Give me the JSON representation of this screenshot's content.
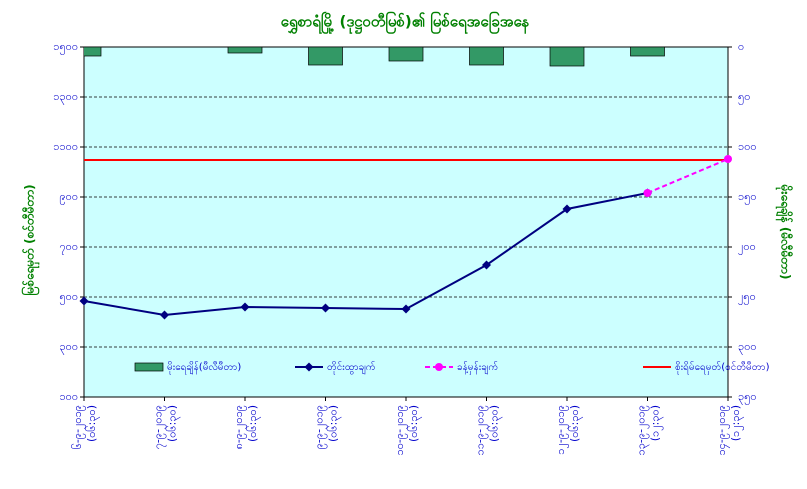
{
  "chart_data": {
    "type": "combo",
    "title": "ရွှေစာရံမြို့ (ဒုဋ္ဌဝတီမြစ်)၏ မြစ်ရေအခြေအနေ",
    "y_label": "မြစ်ရေမှတ် (စင်တီမီတာ)",
    "y2_label": "မိုးရေချိန် (မီလီမီတာ)",
    "categories": [
      "၆-၉-၂၀၁၉",
      "၇-၉-၂၀၁၉",
      "၈-၉-၂၀၁၉",
      "၉-၉-၂၀၁၉",
      "၁၀-၉-၂၀၁၉",
      "၁၁-၉-၂၀၁၉",
      "၁၂-၉-၂၀၁၉",
      "၁၃-၉-၂၀၁၉",
      "၁၄-၉-၂၀၁၉"
    ],
    "category_times": [
      "(၀၆:၃၀)",
      "(၀၆:၃၀)",
      "(၀၆:၃၀)",
      "(၀၆:၃၀)",
      "(၀၆:၃၀)",
      "(၀၆:၃၀)",
      "(၀၆:၃၀)",
      "(၁၂:၃၀)",
      "(၁၂:၃၀)"
    ],
    "ylim": [
      100,
      1500
    ],
    "yticks": [
      {
        "value": 1500,
        "label": "၁၅၀၀"
      },
      {
        "value": 1300,
        "label": "၁၃၀၀"
      },
      {
        "value": 1100,
        "label": "၁၁၀၀"
      },
      {
        "value": 900,
        "label": "၉၀၀"
      },
      {
        "value": 700,
        "label": "၇၀၀"
      },
      {
        "value": 500,
        "label": "၅၀၀"
      },
      {
        "value": 300,
        "label": "၃၀၀"
      },
      {
        "value": 100,
        "label": "၁၀၀"
      }
    ],
    "y2lim": [
      0,
      350
    ],
    "y2_inverted": true,
    "y2ticks": [
      {
        "value": 0,
        "label": "၀"
      },
      {
        "value": 50,
        "label": "၅၀"
      },
      {
        "value": 100,
        "label": "၁၀၀"
      },
      {
        "value": 150,
        "label": "၁၅၀"
      },
      {
        "value": 200,
        "label": "၂၀၀"
      },
      {
        "value": 250,
        "label": "၂၅၀"
      },
      {
        "value": 300,
        "label": "၃၀၀"
      },
      {
        "value": 350,
        "label": "၃၅၀"
      }
    ],
    "grid": true,
    "series": [
      {
        "name": "မိုးရေချိန်(မီလီမီတာ)",
        "type": "bar",
        "axis": "y2",
        "color": "#339966",
        "values": [
          9,
          0,
          6,
          18,
          14,
          18,
          19,
          9,
          0
        ]
      },
      {
        "name": "တိုင်းထွာချက်",
        "type": "line",
        "color": "#000080",
        "marker": "diamond",
        "values": [
          484,
          428,
          460,
          456,
          452,
          628,
          852,
          916,
          null
        ]
      },
      {
        "name": "ခန့်မှန်းချက်",
        "type": "line",
        "color": "#ff00ff",
        "dashed": true,
        "marker": "circle",
        "values": [
          null,
          null,
          null,
          null,
          null,
          null,
          null,
          916,
          1052
        ]
      }
    ],
    "reference_line": {
      "name": "စိုးရိမ်ရေမှတ်(စင်တီမီတာ)",
      "value": 1048,
      "color": "#ff0000"
    }
  }
}
